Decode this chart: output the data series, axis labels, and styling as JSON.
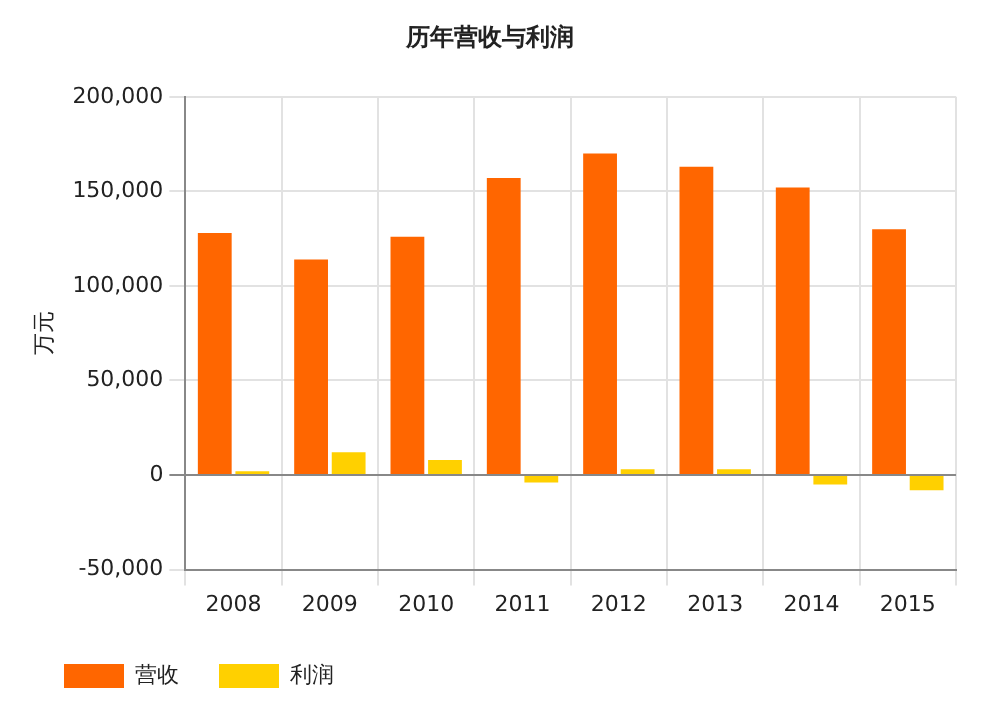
{
  "chart_data": {
    "type": "bar",
    "title": "历年营收与利润",
    "ylabel": "万元",
    "categories": [
      "2008",
      "2009",
      "2010",
      "2011",
      "2012",
      "2013",
      "2014",
      "2015"
    ],
    "series": [
      {
        "name": "营收",
        "color": "#ff6600",
        "values": [
          128000,
          114000,
          126000,
          157000,
          170000,
          163000,
          152000,
          130000
        ]
      },
      {
        "name": "利润",
        "color": "#ffd000",
        "values": [
          2000,
          12000,
          8000,
          -4000,
          3000,
          3000,
          -5000,
          -8000
        ]
      }
    ],
    "ylim": [
      -50000,
      200000
    ],
    "yticks": [
      {
        "value": -50000,
        "label": "-50,000"
      },
      0,
      {
        "value": 50000,
        "label": "50,000"
      },
      {
        "value": 100000,
        "label": "100,000"
      },
      {
        "value": 150000,
        "label": "150,000"
      },
      {
        "value": 200000,
        "label": "200,000"
      }
    ],
    "grid": true,
    "legend": "bottom"
  }
}
